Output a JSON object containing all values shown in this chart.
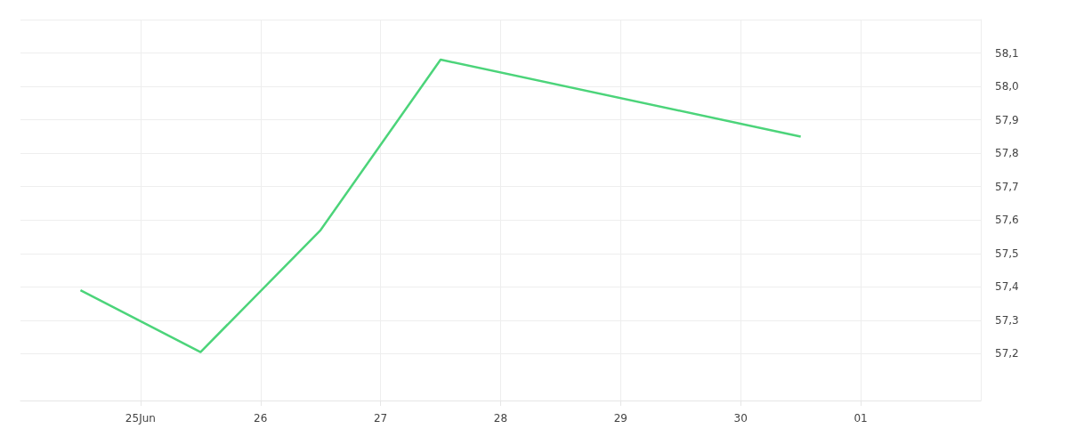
{
  "chart_data": {
    "type": "line",
    "x": [
      "--06-24T12:00",
      "--06-25T12:00",
      "--06-26T12:00",
      "--06-27T12:00",
      "--06-30T12:00"
    ],
    "series": [
      {
        "color": "#4cd47a",
        "values": [
          57.39,
          57.205,
          57.57,
          58.08,
          57.85
        ]
      }
    ],
    "xlim": [
      "--06-24",
      "--07-02"
    ],
    "xticks": [
      {
        "value": "--06-25",
        "label": "25Jun"
      },
      {
        "value": "--06-26",
        "label": "26"
      },
      {
        "value": "--06-27",
        "label": "27"
      },
      {
        "value": "--06-28",
        "label": "28"
      },
      {
        "value": "--06-29",
        "label": "29"
      },
      {
        "value": "--06-30",
        "label": "30"
      },
      {
        "value": "--07-01",
        "label": "01"
      }
    ],
    "ylim": [
      57.06,
      58.2
    ],
    "yticks": [
      {
        "value": 57.2,
        "label": "57,2"
      },
      {
        "value": 57.3,
        "label": "57,3"
      },
      {
        "value": 57.4,
        "label": "57,4"
      },
      {
        "value": 57.5,
        "label": "57,5"
      },
      {
        "value": 57.6,
        "label": "57,6"
      },
      {
        "value": 57.7,
        "label": "57,7"
      },
      {
        "value": 57.8,
        "label": "57,8"
      },
      {
        "value": 57.9,
        "label": "57,9"
      },
      {
        "value": 58.0,
        "label": "58,0"
      },
      {
        "value": 58.1,
        "label": "58,1"
      },
      {
        "value": 58.2,
        "label": null
      }
    ],
    "grid": true,
    "marker": "none",
    "line_style": "solid"
  }
}
